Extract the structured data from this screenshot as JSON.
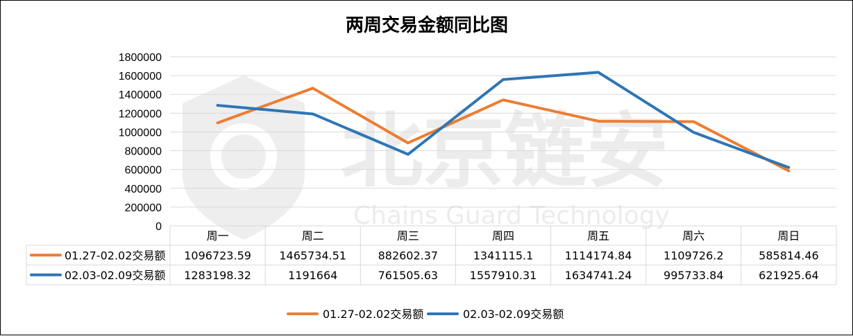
{
  "chart_data": {
    "type": "line",
    "title": "两周交易金额同比图",
    "categories": [
      "周一",
      "周二",
      "周三",
      "周四",
      "周五",
      "周六",
      "周日"
    ],
    "ylim": [
      0,
      1800000
    ],
    "yticks": [
      "1800000",
      "1600000",
      "1400000",
      "1200000",
      "1000000",
      "800000",
      "600000",
      "400000",
      "200000",
      "0"
    ],
    "grid": true,
    "legend_position": "bottom",
    "series": [
      {
        "name": "01.27-02.02交易额",
        "color": "#ED7D31",
        "values": [
          1096723.59,
          1465734.51,
          882602.37,
          1341115.1,
          1114174.84,
          1109726.2,
          585814.46
        ],
        "labels": [
          "1096723.59",
          "1465734.51",
          "882602.37",
          "1341115.1",
          "1114174.84",
          "1109726.2",
          "585814.46"
        ]
      },
      {
        "name": "02.03-02.09交易额",
        "color": "#2E75B6",
        "values": [
          1283198.32,
          1191664,
          761505.63,
          1557910.31,
          1634741.24,
          995733.84,
          621925.64
        ],
        "labels": [
          "1283198.32",
          "1191664",
          "761505.63",
          "1557910.31",
          "1634741.24",
          "995733.84",
          "621925.64"
        ]
      }
    ]
  },
  "watermark": {
    "main": "北京链安",
    "sub": "Chains Guard Technology"
  }
}
